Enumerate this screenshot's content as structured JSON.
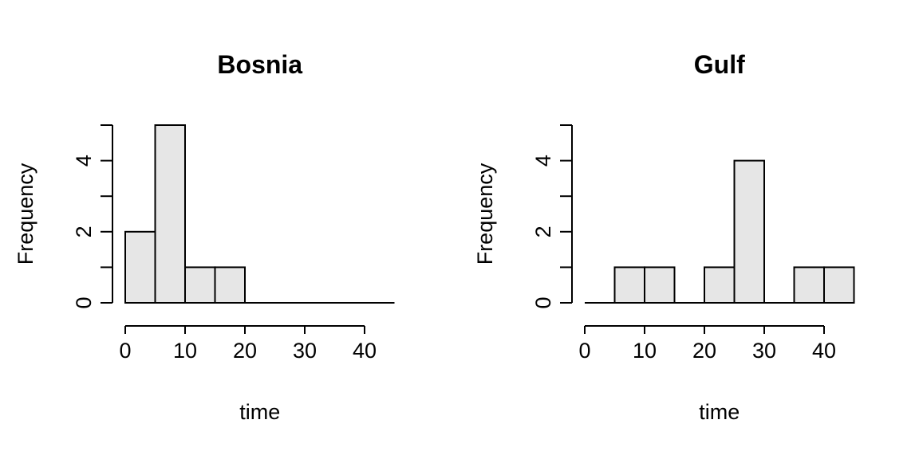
{
  "chart_data": [
    {
      "type": "bar",
      "title": "Bosnia",
      "xlabel": "time",
      "ylabel": "Frequency",
      "bin_edges": [
        0,
        5,
        10,
        15,
        20,
        25,
        30,
        35,
        40,
        45
      ],
      "values": [
        2,
        5,
        1,
        1,
        0,
        0,
        0,
        0,
        0
      ],
      "xlim": [
        0,
        45
      ],
      "ylim": [
        0,
        5
      ],
      "xticks": [
        "0",
        "10",
        "20",
        "30",
        "40"
      ],
      "yticks": [
        "0",
        "2",
        "4"
      ],
      "grid": false
    },
    {
      "type": "bar",
      "title": "Gulf",
      "xlabel": "time",
      "ylabel": "Frequency",
      "bin_edges": [
        0,
        5,
        10,
        15,
        20,
        25,
        30,
        35,
        40,
        45
      ],
      "values": [
        0,
        1,
        1,
        0,
        1,
        4,
        0,
        1,
        1
      ],
      "xlim": [
        0,
        45
      ],
      "ylim": [
        0,
        5
      ],
      "xticks": [
        "0",
        "10",
        "20",
        "30",
        "40"
      ],
      "yticks": [
        "0",
        "2",
        "4"
      ],
      "grid": false
    }
  ],
  "colors": {
    "bar_fill": "#e6e6e6",
    "bar_stroke": "#000000"
  }
}
